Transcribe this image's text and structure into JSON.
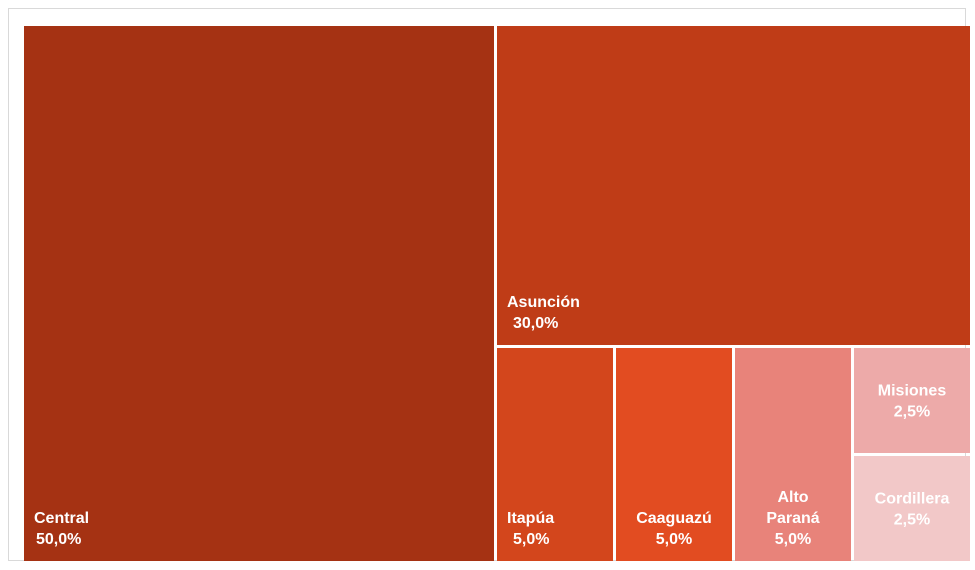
{
  "chart_data": {
    "type": "treemap",
    "items": [
      {
        "name": "Central",
        "label_lines": [
          "Central"
        ],
        "value_label": "50,0%",
        "value": 50.0,
        "color": "#A53213"
      },
      {
        "name": "Asunción",
        "label_lines": [
          "Asunción"
        ],
        "value_label": "30,0%",
        "value": 30.0,
        "color": "#BF3C17"
      },
      {
        "name": "Itapúa",
        "label_lines": [
          "Itapúa"
        ],
        "value_label": "5,0%",
        "value": 5.0,
        "color": "#D3461C"
      },
      {
        "name": "Caaguazú",
        "label_lines": [
          "Caaguazú"
        ],
        "value_label": "5,0%",
        "value": 5.0,
        "color": "#E24C21"
      },
      {
        "name": "Alto Paraná",
        "label_lines": [
          "Alto",
          "Paraná"
        ],
        "value_label": "5,0%",
        "value": 5.0,
        "color": "#E8837A"
      },
      {
        "name": "Misiones",
        "label_lines": [
          "Misiones"
        ],
        "value_label": "2,5%",
        "value": 2.5,
        "color": "#EDAAA9"
      },
      {
        "name": "Cordillera",
        "label_lines": [
          "Cordillera"
        ],
        "value_label": "2,5%",
        "value": 2.5,
        "color": "#F2C8C8"
      }
    ]
  }
}
